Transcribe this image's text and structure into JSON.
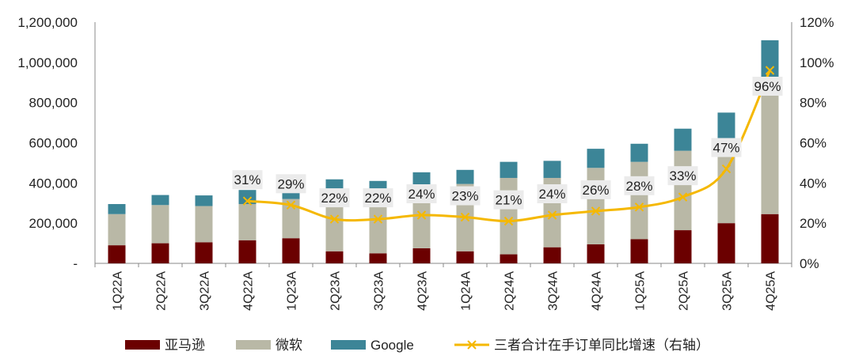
{
  "chart_data": {
    "type": "bar",
    "stacked": true,
    "categories": [
      "1Q22A",
      "2Q22A",
      "3Q22A",
      "4Q22A",
      "1Q23A",
      "2Q23A",
      "3Q23A",
      "4Q23A",
      "1Q24A",
      "2Q24A",
      "3Q24A",
      "4Q24A",
      "1Q25A",
      "2Q25A",
      "3Q25A",
      "4Q25A"
    ],
    "series": [
      {
        "name": "亚马逊",
        "color": "#6b0000",
        "values": [
          90000,
          100000,
          105000,
          115000,
          125000,
          60000,
          50000,
          75000,
          60000,
          45000,
          80000,
          95000,
          120000,
          165000,
          200000,
          245000
        ]
      },
      {
        "name": "微软",
        "color": "#b9b8a6",
        "values": [
          155000,
          190000,
          180000,
          180000,
          195000,
          295000,
          295000,
          305000,
          335000,
          380000,
          345000,
          380000,
          385000,
          395000,
          395000,
          630000
        ]
      },
      {
        "name": "Google",
        "color": "#3c8597",
        "values": [
          50000,
          50000,
          53000,
          70000,
          60000,
          63000,
          65000,
          73000,
          70000,
          80000,
          85000,
          95000,
          90000,
          110000,
          155000,
          235000
        ]
      }
    ],
    "line": {
      "name": "三者合计在手订单同比增速（右轴）",
      "color": "#f5b800",
      "values": [
        31,
        29,
        22,
        22,
        24,
        23,
        21,
        24,
        26,
        28,
        33,
        47,
        96
      ],
      "labels": [
        "31%",
        "29%",
        "22%",
        "22%",
        "24%",
        "23%",
        "21%",
        "24%",
        "26%",
        "28%",
        "33%",
        "47%",
        "96%"
      ],
      "start_category": "4Q22A"
    },
    "y_left": {
      "min": 0,
      "max": 1200000,
      "step": 200000,
      "tick_labels": [
        "-",
        "200,000",
        "400,000",
        "600,000",
        "800,000",
        "1,000,000",
        "1,200,000"
      ]
    },
    "y_right": {
      "min": 0,
      "max": 120,
      "step": 20,
      "tick_labels": [
        "0%",
        "20%",
        "40%",
        "60%",
        "80%",
        "100%",
        "120%"
      ]
    },
    "legend": {
      "position": "bottom",
      "items": [
        "亚马逊",
        "微软",
        "Google",
        "三者合计在手订单同比增速（右轴）"
      ]
    },
    "title": "",
    "xlabel": "",
    "ylabel": ""
  }
}
